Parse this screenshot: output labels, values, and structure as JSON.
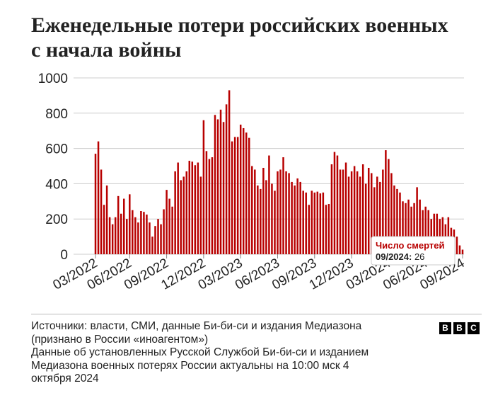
{
  "title_lines": [
    "Еженедельные потери российских военных",
    "с начала войны"
  ],
  "sources_lines": [
    "Источники: власти, СМИ, данные Би-би-си и издания Медиазона",
    "(признано в России «иноагентом»)",
    "Данные об установленных Русской Службой Би-би-си и изданием",
    "Медиазона военных потерях России актуальны на 10:00 мск 4",
    "октября 2024"
  ],
  "logo_letters": [
    "B",
    "B",
    "C"
  ],
  "colors": {
    "bar": "#b80000",
    "highlight_text": "#b80000",
    "axis_text": "#222222",
    "grid": "#cccccc"
  },
  "chart_data": {
    "type": "bar",
    "title": "Еженедельные потери российских военных с начала войны",
    "ylim": [
      0,
      1000
    ],
    "yticks": [
      0,
      200,
      400,
      600,
      800,
      1000
    ],
    "xtick_labels": [
      "03/2022",
      "06/2022",
      "09/2022",
      "12/2022",
      "03/2023",
      "06/2023",
      "09/2023",
      "12/2023",
      "03/2024",
      "06/2024",
      "09/2024"
    ],
    "xtick_week_index": [
      0,
      12,
      25,
      38,
      51,
      64,
      77,
      90,
      103,
      116,
      129
    ],
    "values": [
      570,
      640,
      480,
      280,
      390,
      210,
      170,
      210,
      330,
      230,
      315,
      200,
      340,
      250,
      210,
      180,
      245,
      240,
      225,
      180,
      100,
      160,
      200,
      170,
      255,
      365,
      315,
      270,
      470,
      520,
      420,
      440,
      470,
      530,
      525,
      505,
      520,
      440,
      760,
      585,
      540,
      550,
      790,
      765,
      820,
      750,
      850,
      930,
      640,
      665,
      665,
      735,
      715,
      690,
      660,
      500,
      480,
      390,
      370,
      490,
      420,
      560,
      400,
      360,
      470,
      480,
      550,
      470,
      460,
      410,
      390,
      430,
      410,
      360,
      350,
      280,
      360,
      350,
      355,
      345,
      350,
      280,
      285,
      510,
      580,
      560,
      480,
      480,
      520,
      440,
      470,
      500,
      470,
      440,
      510,
      400,
      490,
      460,
      380,
      440,
      410,
      480,
      590,
      540,
      460,
      390,
      370,
      350,
      300,
      290,
      310,
      270,
      290,
      380,
      310,
      250,
      270,
      250,
      200,
      230,
      230,
      200,
      210,
      170,
      210,
      150,
      140,
      100,
      50,
      26
    ],
    "tooltip": {
      "title": "Число смертей",
      "period": "09/2024",
      "value": "26"
    }
  }
}
